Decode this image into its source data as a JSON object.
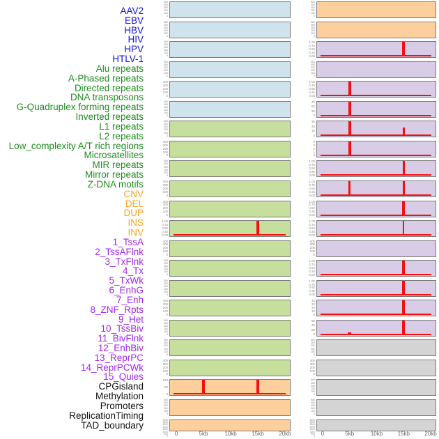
{
  "figure": {
    "colors": {
      "virus_label": "#1414dd",
      "repeat_label": "#1e8b1e",
      "sv_label": "#ffa41e",
      "chromatin_label": "#a227ee",
      "other_label": "#111111",
      "panel_blue": "#cfe3ed",
      "panel_green": "#c6df9c",
      "panel_orange": "#fccf9c",
      "panel_purple": "#d8cce6",
      "panel_gray": "#d4d4d4",
      "panel_border": "#7a7a7a",
      "signal_red": "#f50f0f",
      "ytick_text": "#8a8a8a",
      "xtick_text": "#666666"
    },
    "row_labels": [
      {
        "text": "AAV2",
        "group": "virus"
      },
      {
        "text": "EBV",
        "group": "virus"
      },
      {
        "text": "HBV",
        "group": "virus"
      },
      {
        "text": "HIV",
        "group": "virus"
      },
      {
        "text": "HPV",
        "group": "virus"
      },
      {
        "text": "HTLV-1",
        "group": "virus"
      },
      {
        "text": "Alu repeats",
        "group": "repeat"
      },
      {
        "text": "A-Phased repeats",
        "group": "repeat"
      },
      {
        "text": "Directed repeats",
        "group": "repeat"
      },
      {
        "text": "DNA transposons",
        "group": "repeat"
      },
      {
        "text": "G-Quadruplex forming repeats",
        "group": "repeat"
      },
      {
        "text": "Inverted repeats",
        "group": "repeat"
      },
      {
        "text": "L1 repeats",
        "group": "repeat"
      },
      {
        "text": "L2 repeats",
        "group": "repeat"
      },
      {
        "text": "Low_complexity A/T rich regions",
        "group": "repeat"
      },
      {
        "text": "Microsatellites",
        "group": "repeat"
      },
      {
        "text": "MIR repeats",
        "group": "repeat"
      },
      {
        "text": "Mirror repeats",
        "group": "repeat"
      },
      {
        "text": "Z-DNA motifs",
        "group": "repeat"
      },
      {
        "text": "CNV",
        "group": "sv"
      },
      {
        "text": "DEL",
        "group": "sv"
      },
      {
        "text": "DUP",
        "group": "sv"
      },
      {
        "text": "INS",
        "group": "sv"
      },
      {
        "text": "INV",
        "group": "sv"
      },
      {
        "text": "1_TssA",
        "group": "chromatin"
      },
      {
        "text": "2_TssAFlnk",
        "group": "chromatin"
      },
      {
        "text": "3_TxFlnk",
        "group": "chromatin"
      },
      {
        "text": "4_Tx",
        "group": "chromatin"
      },
      {
        "text": "5_TxWk",
        "group": "chromatin"
      },
      {
        "text": "6_EnhG",
        "group": "chromatin"
      },
      {
        "text": "7_Enh",
        "group": "chromatin"
      },
      {
        "text": "8_ZNF_Rpts",
        "group": "chromatin"
      },
      {
        "text": "9_Het",
        "group": "chromatin"
      },
      {
        "text": "10_TssBiv",
        "group": "chromatin"
      },
      {
        "text": "11_BivFlnk",
        "group": "chromatin"
      },
      {
        "text": "12_EnhBiv",
        "group": "chromatin"
      },
      {
        "text": "13_ReprPC",
        "group": "chromatin"
      },
      {
        "text": "14_ReprPCWk",
        "group": "chromatin"
      },
      {
        "text": "15_Quies",
        "group": "chromatin"
      },
      {
        "text": "CPGisland",
        "group": "other"
      },
      {
        "text": "Methylation",
        "group": "other"
      },
      {
        "text": "Promoters",
        "group": "other"
      },
      {
        "text": "ReplicationTiming",
        "group": "other"
      },
      {
        "text": "TAD_boundary",
        "group": "other"
      }
    ]
  },
  "chart_data": {
    "type": "line",
    "x_range_kb": [
      0,
      20
    ],
    "x_tick_labels": [
      "0",
      "5kb",
      "10kb",
      "15kb",
      "20kb"
    ],
    "x_tick_kb": [
      0,
      5,
      10,
      15,
      20
    ],
    "y_tick_sets": {
      "v500": [
        "500",
        "400",
        "300",
        "200",
        "100",
        "0"
      ],
      "v400": [
        "400",
        "300",
        "200",
        "100",
        "0"
      ],
      "v1": [
        "1.00",
        "0.75",
        "0.50",
        "0.25",
        "0.00"
      ],
      "v100": [
        "100",
        "50",
        "0"
      ],
      "v75": [
        "75",
        "50",
        "25",
        "0"
      ],
      "v40": [
        "40",
        "30",
        "20",
        "10",
        "0"
      ],
      "v30": [
        "30",
        "20",
        "10",
        "0"
      ],
      "v60": [
        "60",
        "40",
        "20",
        "0"
      ],
      "v4": [
        "4",
        "3",
        "2",
        "1",
        "0"
      ],
      "dense": [
        "3500",
        "3000",
        "2500",
        "2000",
        "1500",
        "1000",
        "500",
        "0"
      ]
    },
    "columns": [
      {
        "name": "left-profile-column",
        "panels": [
          {
            "bg": "blue",
            "yticks": "v500",
            "baseline": false,
            "spikes": []
          },
          {
            "bg": "blue",
            "yticks": "v500",
            "baseline": false,
            "spikes": []
          },
          {
            "bg": "blue",
            "yticks": "v500",
            "baseline": false,
            "spikes": []
          },
          {
            "bg": "blue",
            "yticks": "v500",
            "baseline": false,
            "spikes": []
          },
          {
            "bg": "blue",
            "yticks": "v400",
            "baseline": false,
            "spikes": []
          },
          {
            "bg": "blue",
            "yticks": "v500",
            "baseline": false,
            "spikes": []
          },
          {
            "bg": "green",
            "yticks": "v500",
            "baseline": false,
            "spikes": []
          },
          {
            "bg": "green",
            "yticks": "v400",
            "baseline": false,
            "spikes": []
          },
          {
            "bg": "green",
            "yticks": "v500",
            "baseline": false,
            "spikes": []
          },
          {
            "bg": "green",
            "yticks": "v400",
            "baseline": false,
            "spikes": []
          },
          {
            "bg": "green",
            "yticks": "v400",
            "baseline": false,
            "spikes": []
          },
          {
            "bg": "green",
            "yticks": "v1",
            "baseline": true,
            "spikes": [
              {
                "x_kb": 15,
                "rel_h": 1.0,
                "w": 4
              }
            ]
          },
          {
            "bg": "green",
            "yticks": "v400",
            "baseline": false,
            "spikes": []
          },
          {
            "bg": "green",
            "yticks": "v500",
            "baseline": false,
            "spikes": []
          },
          {
            "bg": "green",
            "yticks": "v500",
            "baseline": false,
            "spikes": []
          },
          {
            "bg": "green",
            "yticks": "v400",
            "baseline": false,
            "spikes": []
          },
          {
            "bg": "green",
            "yticks": "v500",
            "baseline": false,
            "spikes": []
          },
          {
            "bg": "green",
            "yticks": "v500",
            "baseline": false,
            "spikes": []
          },
          {
            "bg": "green",
            "yticks": "v400",
            "baseline": false,
            "spikes": []
          },
          {
            "bg": "orange",
            "yticks": "v100",
            "baseline": true,
            "spikes": [
              {
                "x_kb": 5,
                "rel_h": 1.0,
                "w": 4
              },
              {
                "x_kb": 15,
                "rel_h": 1.0,
                "w": 4
              }
            ]
          },
          {
            "bg": "orange",
            "yticks": "v500",
            "baseline": false,
            "spikes": []
          },
          {
            "bg": "orange",
            "yticks": "dense",
            "baseline": false,
            "spikes": []
          }
        ]
      },
      {
        "name": "right-profile-column",
        "panels": [
          {
            "bg": "orange",
            "yticks": "v500",
            "baseline": false,
            "spikes": []
          },
          {
            "bg": "orange",
            "yticks": "v500",
            "baseline": false,
            "spikes": []
          },
          {
            "bg": "purple",
            "yticks": "v1",
            "baseline": true,
            "spikes": [
              {
                "x_kb": 15,
                "rel_h": 1.0,
                "w": 4
              }
            ]
          },
          {
            "bg": "purple",
            "yticks": "v500",
            "baseline": false,
            "spikes": []
          },
          {
            "bg": "purple",
            "yticks": "v1",
            "baseline": true,
            "spikes": [
              {
                "x_kb": 5,
                "rel_h": 1.0,
                "w": 4
              }
            ]
          },
          {
            "bg": "purple",
            "yticks": "v75",
            "baseline": true,
            "spikes": [
              {
                "x_kb": 5,
                "rel_h": 1.0,
                "w": 4
              }
            ]
          },
          {
            "bg": "purple",
            "yticks": "v30",
            "baseline": true,
            "spikes": [
              {
                "x_kb": 5,
                "rel_h": 1.0,
                "w": 4
              },
              {
                "x_kb": 15,
                "rel_h": 0.55,
                "w": 3
              }
            ]
          },
          {
            "bg": "purple",
            "yticks": "v4",
            "baseline": true,
            "spikes": [
              {
                "x_kb": 5,
                "rel_h": 1.0,
                "w": 4
              }
            ]
          },
          {
            "bg": "purple",
            "yticks": "v1",
            "baseline": true,
            "spikes": [
              {
                "x_kb": 15,
                "rel_h": 1.0,
                "w": 3
              }
            ]
          },
          {
            "bg": "purple",
            "yticks": "v1",
            "baseline": true,
            "spikes": [
              {
                "x_kb": 5,
                "rel_h": 1.0,
                "w": 3
              },
              {
                "x_kb": 15,
                "rel_h": 1.0,
                "w": 3
              }
            ]
          },
          {
            "bg": "purple",
            "yticks": "v1",
            "baseline": true,
            "spikes": [
              {
                "x_kb": 15,
                "rel_h": 1.0,
                "w": 4
              }
            ]
          },
          {
            "bg": "purple",
            "yticks": "v1",
            "baseline": true,
            "spikes": [
              {
                "x_kb": 15,
                "rel_h": 1.0,
                "w": 2
              }
            ]
          },
          {
            "bg": "purple",
            "yticks": "v400",
            "baseline": false,
            "spikes": []
          },
          {
            "bg": "purple",
            "yticks": "v1",
            "baseline": true,
            "spikes": [
              {
                "x_kb": 15,
                "rel_h": 1.0,
                "w": 4
              }
            ]
          },
          {
            "bg": "purple",
            "yticks": "v1",
            "baseline": true,
            "spikes": [
              {
                "x_kb": 15,
                "rel_h": 1.0,
                "w": 4
              }
            ]
          },
          {
            "bg": "purple",
            "yticks": "v40",
            "baseline": true,
            "spikes": [
              {
                "x_kb": 15,
                "rel_h": 1.0,
                "w": 4
              }
            ]
          },
          {
            "bg": "purple",
            "yticks": "v60",
            "baseline": true,
            "spikes": [
              {
                "x_kb": 5,
                "rel_h": 0.17,
                "w": 5
              },
              {
                "x_kb": 15,
                "rel_h": 1.0,
                "w": 4
              }
            ]
          },
          {
            "bg": "gray",
            "yticks": "v500",
            "baseline": false,
            "spikes": []
          },
          {
            "bg": "gray",
            "yticks": "v400",
            "baseline": false,
            "spikes": []
          },
          {
            "bg": "gray",
            "yticks": "v500",
            "baseline": false,
            "spikes": []
          },
          {
            "bg": "gray",
            "yticks": "v500",
            "baseline": false,
            "spikes": []
          },
          {
            "bg": "gray",
            "yticks": "dense",
            "baseline": false,
            "spikes": []
          }
        ]
      }
    ]
  }
}
